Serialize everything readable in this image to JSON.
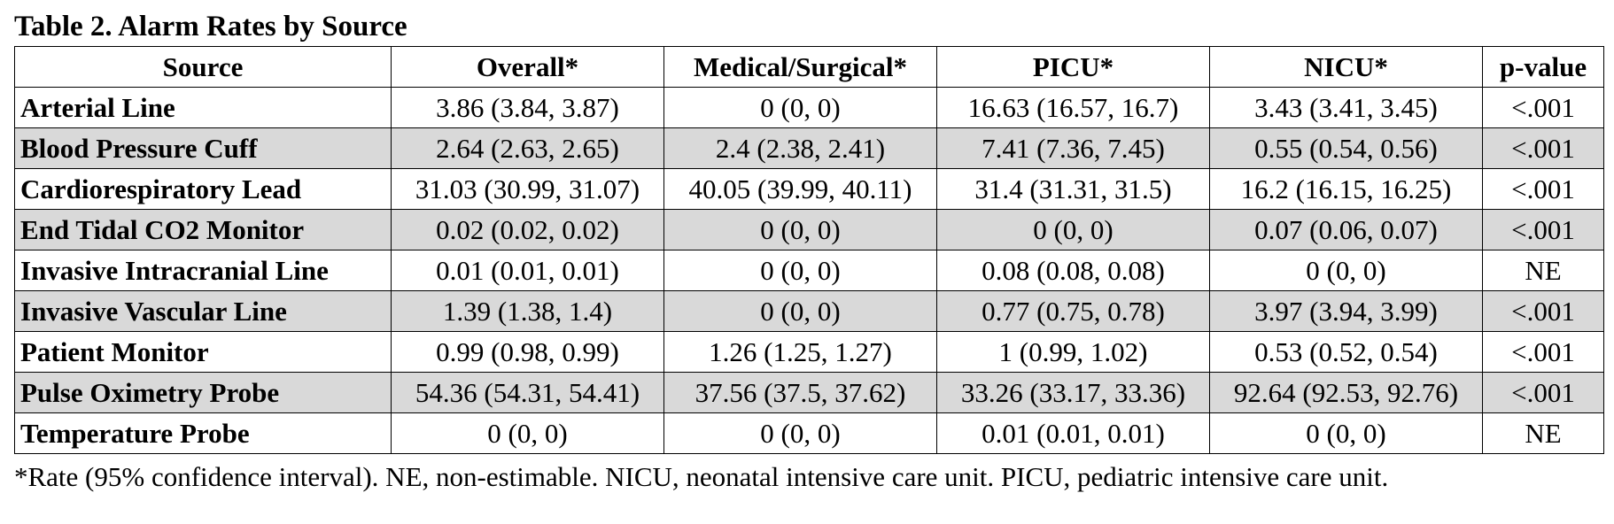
{
  "caption": "Table 2. Alarm Rates by Source",
  "colors": {
    "shaded_row": "#d9d9d9",
    "border": "#000000"
  },
  "headers": [
    "Source",
    "Overall*",
    "Medical/Surgical*",
    "PICU*",
    "NICU*",
    "p-value"
  ],
  "rows": [
    [
      "Arterial Line",
      "3.86 (3.84, 3.87)",
      "0 (0, 0)",
      "16.63 (16.57, 16.7)",
      "3.43 (3.41, 3.45)",
      "<.001"
    ],
    [
      "Blood Pressure Cuff",
      "2.64 (2.63, 2.65)",
      "2.4 (2.38, 2.41)",
      "7.41 (7.36, 7.45)",
      "0.55 (0.54, 0.56)",
      "<.001"
    ],
    [
      "Cardiorespiratory Lead",
      "31.03 (30.99, 31.07)",
      "40.05 (39.99, 40.11)",
      "31.4 (31.31, 31.5)",
      "16.2 (16.15, 16.25)",
      "<.001"
    ],
    [
      "End Tidal CO2 Monitor",
      "0.02 (0.02, 0.02)",
      "0 (0, 0)",
      "0 (0, 0)",
      "0.07 (0.06, 0.07)",
      "<.001"
    ],
    [
      "Invasive Intracranial Line",
      "0.01 (0.01, 0.01)",
      "0 (0, 0)",
      "0.08 (0.08, 0.08)",
      "0 (0, 0)",
      "NE"
    ],
    [
      "Invasive Vascular Line",
      "1.39 (1.38, 1.4)",
      "0 (0, 0)",
      "0.77 (0.75, 0.78)",
      "3.97 (3.94, 3.99)",
      "<.001"
    ],
    [
      "Patient Monitor",
      "0.99 (0.98, 0.99)",
      "1.26 (1.25, 1.27)",
      "1 (0.99, 1.02)",
      "0.53 (0.52, 0.54)",
      "<.001"
    ],
    [
      "Pulse Oximetry Probe",
      "54.36 (54.31, 54.41)",
      "37.56 (37.5, 37.62)",
      "33.26 (33.17, 33.36)",
      "92.64 (92.53, 92.76)",
      "<.001"
    ],
    [
      "Temperature Probe",
      "0 (0, 0)",
      "0 (0, 0)",
      "0.01 (0.01, 0.01)",
      "0 (0, 0)",
      "NE"
    ]
  ],
  "footnote": "*Rate (95% confidence interval). NE, non-estimable. NICU, neonatal intensive care unit. PICU, pediatric intensive care unit."
}
